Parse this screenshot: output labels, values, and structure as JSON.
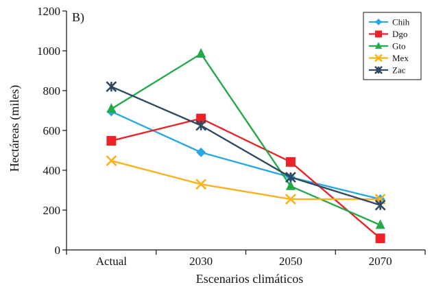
{
  "chart_data": {
    "type": "line",
    "panel_label": "B)",
    "xlabel": "Escenarios climáticos",
    "ylabel": "Hectáreas (miles)",
    "categories": [
      "Actual",
      "2030",
      "2050",
      "2070"
    ],
    "ylim": [
      0,
      1200
    ],
    "yticks": [
      0,
      200,
      400,
      600,
      800,
      1000,
      1200
    ],
    "grid": false,
    "legend_position": "top-right",
    "series": [
      {
        "name": "Chih",
        "color": "#29a8e0",
        "marker": "diamond",
        "values": [
          695,
          490,
          365,
          255
        ]
      },
      {
        "name": "Dgo",
        "color": "#ec2227",
        "marker": "square",
        "values": [
          548,
          660,
          442,
          58
        ]
      },
      {
        "name": "Gto",
        "color": "#23a84a",
        "marker": "triangle",
        "values": [
          708,
          985,
          320,
          125
        ]
      },
      {
        "name": "Mex",
        "color": "#fbb21a",
        "marker": "x",
        "values": [
          448,
          330,
          255,
          255
        ]
      },
      {
        "name": "Zac",
        "color": "#2e4960",
        "marker": "star",
        "values": [
          820,
          625,
          365,
          225
        ]
      }
    ]
  }
}
